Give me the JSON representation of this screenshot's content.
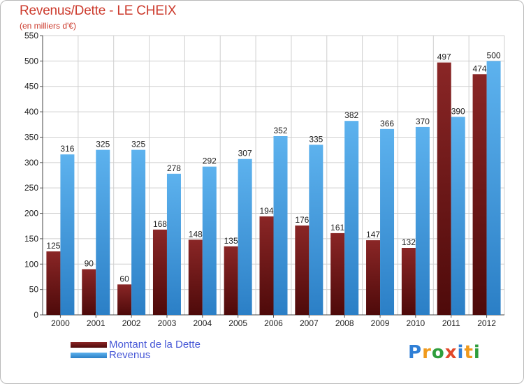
{
  "chart_data": {
    "type": "bar",
    "title": "Revenus/Dette - LE CHEIX",
    "subtitle": "(en milliers d'€)",
    "categories": [
      "2000",
      "2001",
      "2002",
      "2003",
      "2004",
      "2005",
      "2006",
      "2007",
      "2008",
      "2009",
      "2010",
      "2011",
      "2012"
    ],
    "series": [
      {
        "name": "Montant de la Dette",
        "values": [
          125,
          90,
          60,
          168,
          148,
          135,
          194,
          176,
          161,
          147,
          132,
          497,
          474
        ],
        "color": "#7a1a1a"
      },
      {
        "name": "Revenus",
        "values": [
          316,
          325,
          325,
          278,
          292,
          307,
          352,
          335,
          382,
          366,
          370,
          390,
          500
        ],
        "color": "#4ca3e6"
      }
    ],
    "ylim": [
      0,
      550
    ],
    "yticks": [
      0,
      50,
      100,
      150,
      200,
      250,
      300,
      350,
      400,
      450,
      500,
      550
    ],
    "grid": true,
    "legend_position": "bottom-left",
    "data_labels": true
  },
  "logo": {
    "letters": [
      "P",
      "r",
      "o",
      "x",
      "i",
      "t",
      "i"
    ],
    "colors": [
      "#2f7fd6",
      "#f09a1d",
      "#2f9e3d",
      "#e2492b",
      "#2f7fd6",
      "#f09a1d",
      "#2f9e3d"
    ]
  }
}
